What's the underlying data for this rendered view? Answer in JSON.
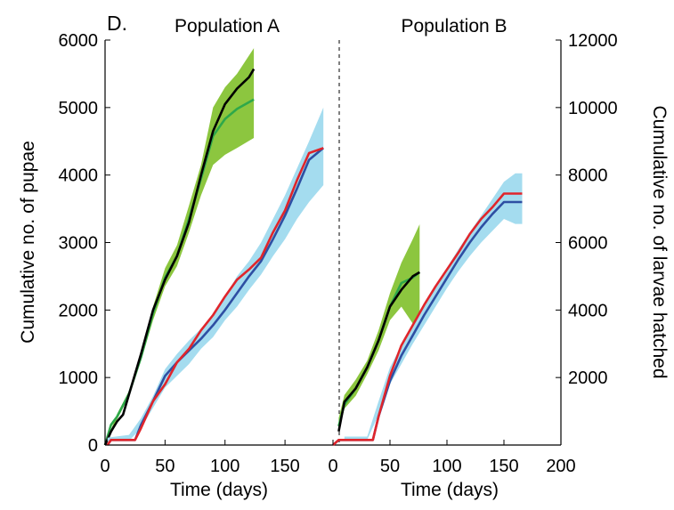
{
  "figure": {
    "panel_letter": "D.",
    "colors": {
      "pupae_observed": "#000000",
      "pupae_model": "#2ea84a",
      "pupae_band": "#8cc63f",
      "larvae_observed": "#e0252b",
      "larvae_model": "#2e4fa3",
      "larvae_band": "#a4dcef",
      "axis": "#000000"
    }
  },
  "chart_data": [
    {
      "type": "line",
      "title": "Population A",
      "xlabel": "Time (days)",
      "ylabel_left": "Cumulative no. of pupae",
      "ylabel_right": "",
      "xlim": [
        0,
        190
      ],
      "xticks": [
        "0",
        "50",
        "100",
        "150"
      ],
      "ylim_left": [
        0,
        6000
      ],
      "yticks_left": [
        "0",
        "1000",
        "2000",
        "3000",
        "4000",
        "5000",
        "6000"
      ],
      "ylim_right": [
        0,
        12000
      ],
      "yticks_right": [],
      "grid": false,
      "series": [
        {
          "role": "pupae_band",
          "axis": "left",
          "x": [
            0,
            10,
            20,
            30,
            40,
            50,
            60,
            70,
            80,
            90,
            100,
            110,
            124
          ],
          "lower": [
            0,
            380,
            720,
            1250,
            1850,
            2350,
            2650,
            3150,
            3700,
            4150,
            4300,
            4400,
            4550
          ],
          "upper": [
            0,
            460,
            800,
            1370,
            2050,
            2620,
            2960,
            3550,
            4150,
            5000,
            5300,
            5500,
            5880
          ]
        },
        {
          "role": "pupae_model",
          "axis": "left",
          "x": [
            0,
            5,
            10,
            20,
            30,
            40,
            50,
            60,
            70,
            80,
            90,
            100,
            110,
            124
          ],
          "y": [
            0,
            300,
            420,
            760,
            1300,
            1950,
            2480,
            2800,
            3350,
            3950,
            4580,
            4830,
            4980,
            5120
          ]
        },
        {
          "role": "pupae_observed",
          "axis": "left",
          "x": [
            0,
            5,
            10,
            15,
            20,
            30,
            40,
            50,
            60,
            70,
            80,
            90,
            100,
            110,
            120,
            124
          ],
          "y": [
            0,
            200,
            350,
            450,
            750,
            1350,
            2000,
            2450,
            2800,
            3300,
            4000,
            4650,
            5050,
            5280,
            5450,
            5570
          ]
        },
        {
          "role": "larvae_band",
          "axis": "right",
          "x": [
            2,
            20,
            30,
            40,
            50,
            60,
            70,
            80,
            90,
            100,
            110,
            120,
            130,
            140,
            150,
            160,
            170,
            182
          ],
          "lower": [
            120,
            120,
            500,
            1100,
            1700,
            2050,
            2400,
            2850,
            3200,
            3700,
            4100,
            4600,
            5050,
            5600,
            6100,
            6700,
            7200,
            7700
          ],
          "upper": [
            220,
            300,
            800,
            1450,
            2250,
            2700,
            3100,
            3450,
            3900,
            4400,
            5000,
            5450,
            6000,
            6700,
            7400,
            8200,
            9000,
            10000
          ]
        },
        {
          "role": "larvae_model",
          "axis": "right",
          "x": [
            2,
            5,
            25,
            30,
            40,
            50,
            60,
            70,
            80,
            90,
            100,
            110,
            120,
            130,
            140,
            150,
            160,
            170,
            182
          ],
          "y": [
            0,
            150,
            150,
            600,
            1300,
            2050,
            2450,
            2800,
            3150,
            3550,
            4000,
            4500,
            5000,
            5450,
            6100,
            6800,
            7600,
            8450,
            8800
          ]
        },
        {
          "role": "larvae_observed",
          "axis": "right",
          "x": [
            2,
            5,
            25,
            30,
            40,
            50,
            60,
            70,
            80,
            90,
            100,
            110,
            120,
            130,
            140,
            150,
            160,
            170,
            182
          ],
          "y": [
            0,
            150,
            150,
            500,
            1300,
            1800,
            2450,
            2850,
            3400,
            3850,
            4400,
            4900,
            5200,
            5550,
            6300,
            6950,
            7850,
            8650,
            8800
          ]
        }
      ]
    },
    {
      "type": "line",
      "title": "Population B",
      "xlabel": "Time (days)",
      "ylabel_left": "",
      "ylabel_right": "Cumulative no. of larvae hatched",
      "xlim": [
        0,
        200
      ],
      "xticks": [
        "0",
        "50",
        "100",
        "150",
        "200"
      ],
      "ylim_left": [
        0,
        6000
      ],
      "yticks_left": [],
      "ylim_right": [
        0,
        12000
      ],
      "yticks_right": [
        "2000",
        "4000",
        "6000",
        "8000",
        "10000",
        "12000"
      ],
      "grid": false,
      "series": [
        {
          "role": "pupae_band",
          "axis": "left",
          "x": [
            5,
            10,
            20,
            30,
            40,
            50,
            60,
            70,
            76
          ],
          "lower": [
            200,
            540,
            730,
            1050,
            1400,
            1850,
            2050,
            1800,
            1830
          ],
          "upper": [
            400,
            740,
            970,
            1250,
            1700,
            2250,
            2700,
            3050,
            3270
          ]
        },
        {
          "role": "pupae_model",
          "axis": "left",
          "x": [
            5,
            10,
            20,
            30,
            40,
            50,
            60,
            70,
            76
          ],
          "y": [
            280,
            600,
            840,
            1150,
            1550,
            2050,
            2400,
            2480,
            2560
          ]
        },
        {
          "role": "pupae_observed",
          "axis": "left",
          "x": [
            5,
            10,
            20,
            30,
            40,
            50,
            60,
            70,
            76
          ],
          "y": [
            200,
            640,
            840,
            1150,
            1550,
            2050,
            2300,
            2500,
            2560
          ]
        },
        {
          "role": "larvae_band",
          "axis": "right",
          "x": [
            10,
            30,
            40,
            50,
            60,
            70,
            80,
            90,
            100,
            110,
            120,
            130,
            140,
            150,
            160,
            166
          ],
          "lower": [
            150,
            150,
            900,
            1800,
            2400,
            3000,
            3550,
            4100,
            4650,
            5150,
            5600,
            6000,
            6350,
            6700,
            6550,
            6550
          ],
          "upper": [
            250,
            250,
            1300,
            2300,
            2950,
            3600,
            4150,
            4700,
            5250,
            5800,
            6300,
            6800,
            7300,
            7800,
            8050,
            8050
          ]
        },
        {
          "role": "larvae_model",
          "axis": "right",
          "x": [
            0,
            5,
            35,
            40,
            50,
            60,
            70,
            80,
            90,
            100,
            110,
            120,
            130,
            140,
            150,
            160,
            166
          ],
          "y": [
            0,
            150,
            150,
            850,
            1900,
            2650,
            3250,
            3850,
            4400,
            4950,
            5500,
            6000,
            6450,
            6850,
            7200,
            7200,
            7200
          ]
        },
        {
          "role": "larvae_observed",
          "axis": "right",
          "x": [
            0,
            5,
            35,
            40,
            50,
            60,
            70,
            80,
            90,
            100,
            110,
            120,
            130,
            140,
            150,
            160,
            166
          ],
          "y": [
            0,
            150,
            150,
            850,
            2050,
            2950,
            3550,
            4150,
            4700,
            5200,
            5700,
            6250,
            6700,
            7050,
            7450,
            7450,
            7450
          ]
        }
      ]
    }
  ]
}
